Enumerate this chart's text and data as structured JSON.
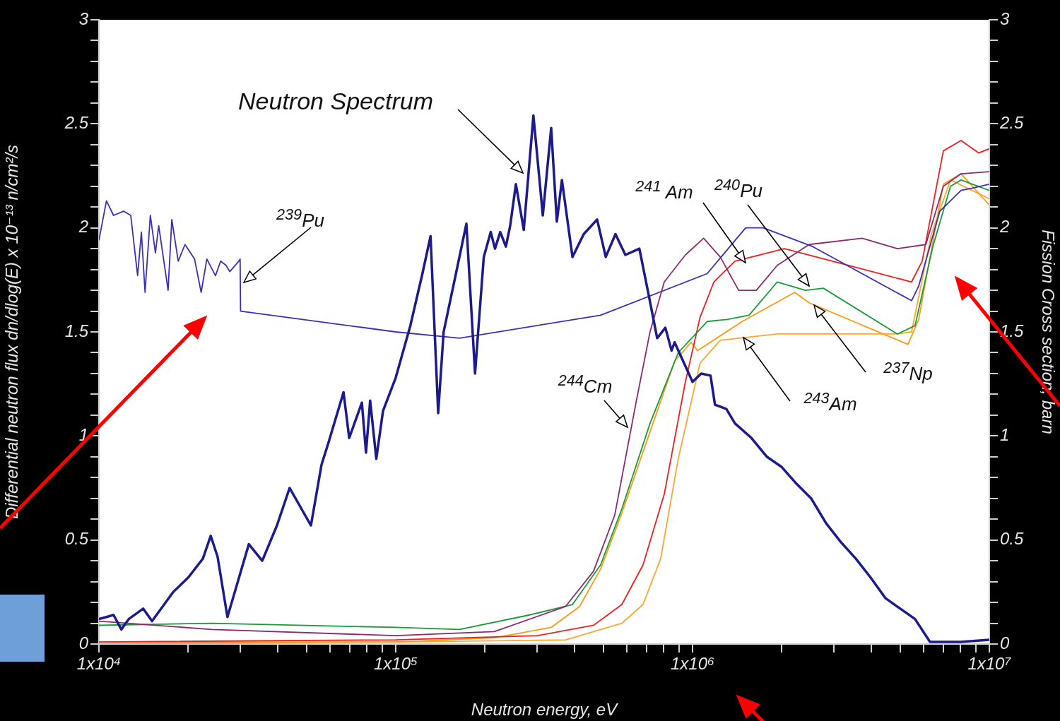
{
  "chart_data": {
    "type": "line",
    "xlabel": "Neutron energy, eV",
    "ylabel": "Differential neutron flux dn/dlog(E) x 10⁻¹³ n/cm²/s",
    "y2label": "Fission Cross section, barn",
    "log": "x",
    "legend": false,
    "xlim": [
      10000,
      10000000
    ],
    "xticks": [
      {
        "value": 10000,
        "label": "1x10⁴"
      },
      {
        "value": 20000,
        "label": null
      },
      {
        "value": 30000,
        "label": null
      },
      {
        "value": 40000,
        "label": null
      },
      {
        "value": 50000,
        "label": null
      },
      {
        "value": 60000,
        "label": null
      },
      {
        "value": 70000,
        "label": null
      },
      {
        "value": 80000,
        "label": null
      },
      {
        "value": 90000,
        "label": null
      },
      {
        "value": 100000,
        "label": "1x10⁵"
      },
      {
        "value": 200000,
        "label": null
      },
      {
        "value": 300000,
        "label": null
      },
      {
        "value": 400000,
        "label": null
      },
      {
        "value": 500000,
        "label": null
      },
      {
        "value": 600000,
        "label": null
      },
      {
        "value": 700000,
        "label": null
      },
      {
        "value": 800000,
        "label": null
      },
      {
        "value": 900000,
        "label": null
      },
      {
        "value": 1000000,
        "label": "1x10⁶"
      },
      {
        "value": 2000000,
        "label": null
      },
      {
        "value": 3000000,
        "label": null
      },
      {
        "value": 4000000,
        "label": null
      },
      {
        "value": 5000000,
        "label": null
      },
      {
        "value": 6000000,
        "label": null
      },
      {
        "value": 7000000,
        "label": null
      },
      {
        "value": 8000000,
        "label": null
      },
      {
        "value": 9000000,
        "label": null
      },
      {
        "value": 10000000,
        "label": "1x10⁷"
      }
    ],
    "ylim": [
      0,
      3
    ],
    "yticks": [
      0,
      {
        "value": 0.1,
        "label": null
      },
      {
        "value": 0.2,
        "label": null
      },
      {
        "value": 0.3,
        "label": null
      },
      {
        "value": 0.4,
        "label": null
      },
      0.5,
      {
        "value": 0.6,
        "label": null
      },
      {
        "value": 0.7,
        "label": null
      },
      {
        "value": 0.8,
        "label": null
      },
      {
        "value": 0.9,
        "label": null
      },
      1,
      {
        "value": 1.1,
        "label": null
      },
      {
        "value": 1.2,
        "label": null
      },
      {
        "value": 1.3,
        "label": null
      },
      {
        "value": 1.4,
        "label": null
      },
      1.5,
      {
        "value": 1.6,
        "label": null
      },
      {
        "value": 1.7,
        "label": null
      },
      {
        "value": 1.8,
        "label": null
      },
      {
        "value": 1.9,
        "label": null
      },
      2,
      {
        "value": 2.1,
        "label": null
      },
      {
        "value": 2.2,
        "label": null
      },
      {
        "value": 2.3,
        "label": null
      },
      {
        "value": 2.4,
        "label": null
      },
      2.5,
      {
        "value": 2.6,
        "label": null
      },
      {
        "value": 2.7,
        "label": null
      },
      {
        "value": 2.8,
        "label": null
      },
      {
        "value": 2.9,
        "label": null
      },
      3
    ],
    "y2lim": [
      0,
      3
    ],
    "y2ticks": [
      0,
      {
        "value": 0.1,
        "label": null
      },
      {
        "value": 0.2,
        "label": null
      },
      {
        "value": 0.3,
        "label": null
      },
      {
        "value": 0.4,
        "label": null
      },
      0.5,
      {
        "value": 0.6,
        "label": null
      },
      {
        "value": 0.7,
        "label": null
      },
      {
        "value": 0.8,
        "label": null
      },
      {
        "value": 0.9,
        "label": null
      },
      1,
      {
        "value": 1.1,
        "label": null
      },
      {
        "value": 1.2,
        "label": null
      },
      {
        "value": 1.3,
        "label": null
      },
      {
        "value": 1.4,
        "label": null
      },
      1.5,
      {
        "value": 1.6,
        "label": null
      },
      {
        "value": 1.7,
        "label": null
      },
      {
        "value": 1.8,
        "label": null
      },
      {
        "value": 1.9,
        "label": null
      },
      2,
      {
        "value": 2.1,
        "label": null
      },
      {
        "value": 2.2,
        "label": null
      },
      {
        "value": 2.3,
        "label": null
      },
      {
        "value": 2.4,
        "label": null
      },
      2.5,
      {
        "value": 2.6,
        "label": null
      },
      {
        "value": 2.7,
        "label": null
      },
      {
        "value": 2.8,
        "label": null
      },
      {
        "value": 2.9,
        "label": null
      },
      3
    ],
    "series": [
      {
        "color": "#1c1a8c",
        "x": [
          10000,
          10600,
          11200,
          11900,
          12600,
          14100,
          15100,
          17800,
          20000,
          22400,
          23800,
          25100,
          27100,
          32000,
          35500,
          39800,
          43900,
          51800,
          56200,
          59400,
          66700,
          69700,
          76900,
          79400,
          82000,
          86000,
          90600,
          100000,
          112000,
          123000,
          131000,
          139000,
          145000,
          159000,
          173000,
          185000,
          198000,
          209000,
          216000,
          225000,
          235000,
          243000,
          254000,
          270000,
          291000,
          313000,
          334000,
          349000,
          363000,
          394000,
          430000,
          477000,
          510000,
          550000,
          594000,
          662000,
          711000,
          760000,
          810000,
          850000,
          870000,
          1000000,
          1070000,
          1150000,
          1190000,
          1300000,
          1390000,
          1580000,
          1780000,
          2000000,
          2240000,
          2510000,
          2820000,
          3160000,
          3550000,
          3980000,
          4470000,
          5010000,
          5620000,
          6310000,
          7080000,
          8000000,
          10000000
        ],
        "values": [
          0.12,
          0.13,
          0.14,
          0.07,
          0.12,
          0.17,
          0.11,
          0.25,
          0.32,
          0.41,
          0.52,
          0.42,
          0.13,
          0.48,
          0.4,
          0.57,
          0.75,
          0.57,
          0.86,
          0.97,
          1.21,
          0.99,
          1.16,
          0.92,
          1.17,
          0.89,
          1.12,
          1.28,
          1.53,
          1.78,
          1.96,
          1.11,
          1.5,
          1.77,
          2.02,
          1.3,
          1.86,
          1.98,
          1.9,
          1.98,
          1.91,
          2.01,
          2.21,
          1.99,
          2.54,
          2.06,
          2.48,
          2.03,
          2.23,
          1.86,
          1.97,
          2.04,
          1.86,
          1.97,
          1.87,
          1.9,
          1.68,
          1.47,
          1.52,
          1.41,
          1.45,
          1.26,
          1.3,
          1.29,
          1.15,
          1.13,
          1.06,
          0.99,
          0.9,
          0.85,
          0.77,
          0.7,
          0.58,
          0.49,
          0.41,
          0.32,
          0.22,
          0.17,
          0.12,
          0.01,
          0.01,
          0.01,
          0.02
        ]
      },
      {
        "color": "#3a30b8",
        "axis": "y2",
        "x": [
          10000,
          10600,
          11200,
          12100,
          12800,
          13500,
          13900,
          14300,
          14900,
          15500,
          15900,
          17100,
          17600,
          18500,
          19500,
          21000,
          22100,
          23100,
          24700,
          25700,
          26800,
          27600,
          29600,
          29900,
          30000,
          100000,
          164000,
          490000,
          1120000,
          1510000,
          1730000,
          2540000,
          5470000,
          5780000,
          6810000,
          8030000,
          8710000,
          10000000
        ],
        "values": [
          1.94,
          2.13,
          2.06,
          2.08,
          2.06,
          1.77,
          1.98,
          1.69,
          2.06,
          1.88,
          2.01,
          1.7,
          2.04,
          1.84,
          1.92,
          1.85,
          1.69,
          1.85,
          1.77,
          1.84,
          1.82,
          1.79,
          1.84,
          1.85,
          1.6,
          1.5,
          1.47,
          1.58,
          1.78,
          2.0,
          2.0,
          1.91,
          1.65,
          1.72,
          2.08,
          2.18,
          2.19,
          2.21
        ]
      },
      {
        "color": "#8c2a70",
        "axis": "y2",
        "x": [
          10000,
          24000,
          100000,
          215000,
          373000,
          464000,
          547000,
          645000,
          719000,
          803000,
          946000,
          1090000,
          1240000,
          1430000,
          1640000,
          1930000,
          2470000,
          3730000,
          4900000,
          6110000,
          7000000,
          8030000,
          10000000
        ],
        "values": [
          0.11,
          0.07,
          0.04,
          0.06,
          0.18,
          0.35,
          0.62,
          1.16,
          1.5,
          1.74,
          1.87,
          1.95,
          1.86,
          1.7,
          1.7,
          1.82,
          1.92,
          1.95,
          1.9,
          1.92,
          2.2,
          2.26,
          2.27
        ]
      },
      {
        "color": "#1a9a3c",
        "axis": "y2",
        "x": [
          10000,
          24000,
          100000,
          164000,
          283000,
          394000,
          490000,
          578000,
          719000,
          895000,
          1120000,
          1310000,
          1550000,
          1930000,
          2400000,
          2760000,
          4900000,
          5620000,
          6450000,
          7400000,
          8030000,
          10000000
        ],
        "values": [
          0.09,
          0.1,
          0.08,
          0.07,
          0.14,
          0.19,
          0.38,
          0.65,
          1.06,
          1.4,
          1.55,
          1.56,
          1.58,
          1.74,
          1.7,
          1.71,
          1.49,
          1.53,
          1.91,
          2.2,
          2.23,
          2.18
        ]
      },
      {
        "color": "#f01e1e",
        "axis": "y2",
        "x": [
          10000,
          100000,
          299000,
          464000,
          578000,
          681000,
          803000,
          946000,
          1060000,
          1180000,
          1390000,
          2040000,
          3340000,
          5470000,
          5940000,
          7000000,
          8030000,
          9200000,
          10000000
        ],
        "values": [
          0.01,
          0.02,
          0.04,
          0.09,
          0.19,
          0.38,
          0.72,
          1.26,
          1.57,
          1.74,
          1.84,
          1.9,
          1.82,
          1.74,
          1.84,
          2.37,
          2.42,
          2.36,
          2.38
        ]
      },
      {
        "color": "#ff9a10",
        "axis": "y2",
        "x": [
          10000,
          100000,
          215000,
          334000,
          416000,
          490000,
          578000,
          719000,
          871000,
          989000,
          1040000,
          1470000,
          2210000,
          2470000,
          5320000,
          5780000,
          7000000,
          8030000,
          10000000
        ],
        "values": [
          0.01,
          0.01,
          0.03,
          0.08,
          0.18,
          0.36,
          0.63,
          1.02,
          1.36,
          1.45,
          1.41,
          1.55,
          1.69,
          1.64,
          1.44,
          1.56,
          2.21,
          2.26,
          2.11
        ]
      },
      {
        "color": "#ffa533",
        "axis": "y2",
        "x": [
          10000,
          100000,
          373000,
          578000,
          681000,
          781000,
          895000,
          1060000,
          1240000,
          1930000,
          4900000,
          5470000,
          6380000,
          7400000,
          10000000
        ],
        "values": [
          0.0,
          0.01,
          0.02,
          0.1,
          0.19,
          0.41,
          0.89,
          1.35,
          1.46,
          1.49,
          1.49,
          1.5,
          1.97,
          2.23,
          2.14
        ]
      }
    ],
    "annotations": [
      "Neutron Spectrum",
      "$^{239}$Pu",
      "$^{241}$ Am",
      "$^{240}$Pu",
      "$^{244}$Cm",
      "$^{237}$Np",
      "$^{243}$Am"
    ]
  }
}
